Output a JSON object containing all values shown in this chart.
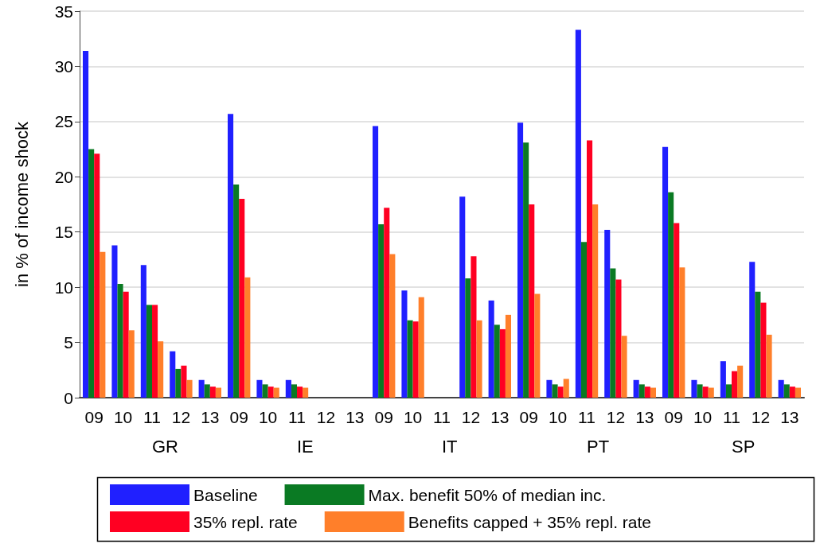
{
  "chart_data": {
    "type": "bar",
    "ylabel": "in % of income shock",
    "categories": [
      "09",
      "10",
      "11",
      "12",
      "13",
      "09",
      "10",
      "11",
      "12",
      "13",
      "09",
      "10",
      "11",
      "12",
      "13",
      "09",
      "10",
      "11",
      "12",
      "13",
      "09",
      "10",
      "11",
      "12",
      "13"
    ],
    "annotations": [
      "GR",
      "IE",
      "IT",
      "PT",
      "SP"
    ],
    "series": [
      {
        "name": "Baseline",
        "color": "#2020ff",
        "values": [
          31.4,
          13.8,
          12.0,
          4.2,
          1.6,
          25.7,
          1.6,
          1.6,
          null,
          null,
          24.6,
          9.7,
          null,
          18.2,
          8.8,
          24.9,
          1.6,
          33.3,
          15.2,
          1.6,
          22.7,
          1.6,
          3.3,
          12.3,
          1.6
        ]
      },
      {
        "name": "Max. benefit 50% of median inc.",
        "color": "#0a7a23",
        "values": [
          22.5,
          10.3,
          8.4,
          2.6,
          1.2,
          19.3,
          1.2,
          1.2,
          null,
          null,
          15.7,
          7.0,
          null,
          10.8,
          6.6,
          23.1,
          1.2,
          14.1,
          11.7,
          1.2,
          18.6,
          1.2,
          1.2,
          9.6,
          1.2
        ]
      },
      {
        "name": "35% repl. rate",
        "color": "#ff0022",
        "values": [
          22.1,
          9.6,
          8.4,
          2.9,
          1.0,
          18.0,
          1.0,
          1.0,
          null,
          null,
          17.2,
          6.9,
          null,
          12.8,
          6.2,
          17.5,
          1.0,
          23.3,
          10.7,
          1.0,
          15.8,
          1.0,
          2.4,
          8.6,
          1.0
        ]
      },
      {
        "name": "Benefits capped + 35% repl. rate",
        "color": "#ff7f2a",
        "values": [
          13.2,
          6.1,
          5.1,
          1.6,
          0.9,
          10.9,
          0.9,
          0.9,
          null,
          null,
          13.0,
          9.1,
          null,
          7.0,
          7.5,
          9.4,
          1.7,
          17.5,
          5.6,
          0.9,
          11.8,
          0.9,
          2.9,
          5.7,
          0.9
        ]
      }
    ],
    "ylim": [
      0,
      35
    ],
    "yticks": [
      0,
      5,
      10,
      15,
      20,
      25,
      30,
      35
    ],
    "grid": "y",
    "legend": "bottom"
  }
}
